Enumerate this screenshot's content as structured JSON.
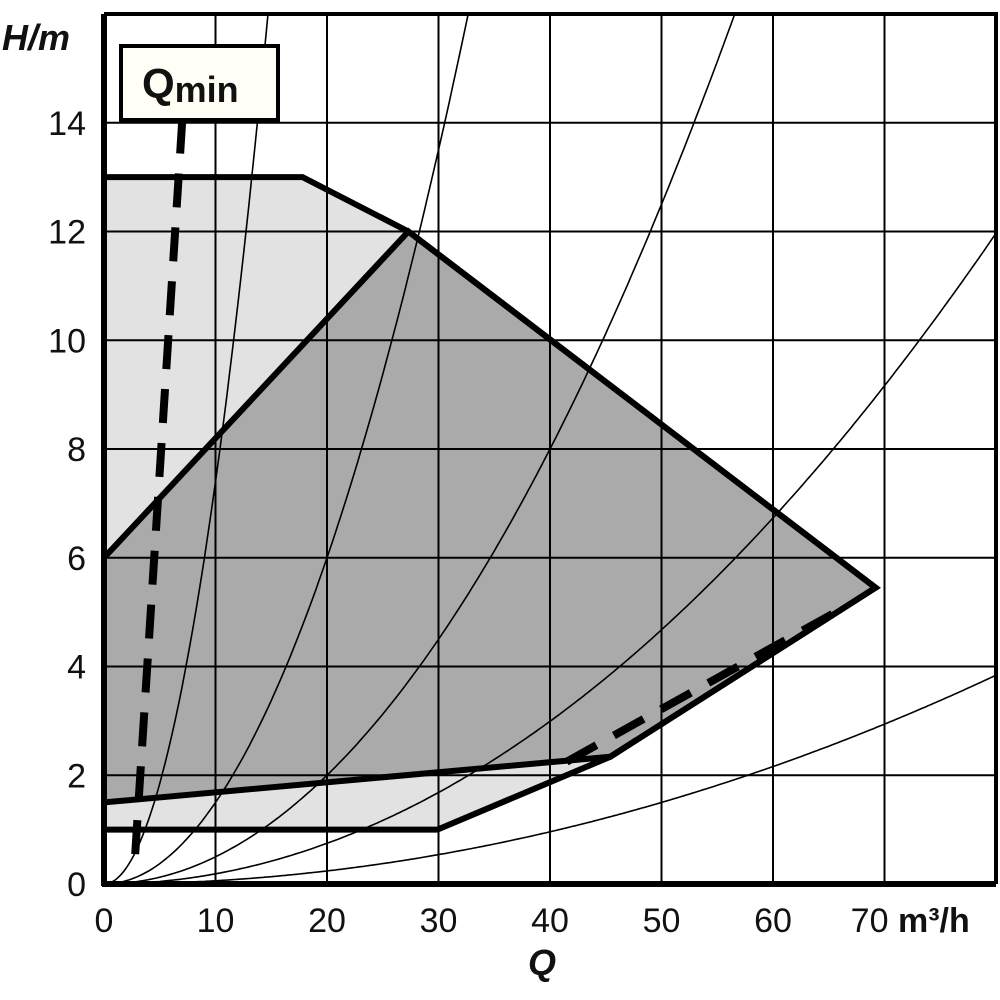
{
  "chart_data": {
    "type": "area",
    "xlabel": "Q",
    "xunit": "m³/h",
    "ylabel": "H/m",
    "xlim": [
      0,
      80
    ],
    "ylim": [
      0,
      16
    ],
    "x_ticks": [
      0,
      10,
      20,
      30,
      40,
      50,
      60,
      70
    ],
    "y_ticks": [
      0,
      2,
      4,
      6,
      8,
      10,
      12,
      14
    ],
    "grid": true,
    "colors": {
      "max_region": "#e2e2e2",
      "min_region": "#aaaaaa",
      "lines": "#000000",
      "label_box": "#fffff6"
    },
    "regions": [
      {
        "id": "max_speed_field",
        "points": [
          [
            0,
            13
          ],
          [
            17.8,
            13
          ],
          [
            27.3,
            12
          ],
          [
            69.2,
            5.45
          ],
          [
            45.4,
            2.34
          ],
          [
            29.9,
            1.0
          ],
          [
            0,
            1.0
          ]
        ]
      },
      {
        "id": "operating_field",
        "points": [
          [
            0,
            6
          ],
          [
            27.3,
            12
          ],
          [
            69.2,
            5.45
          ],
          [
            45.4,
            2.34
          ],
          [
            0,
            1.5
          ]
        ]
      }
    ],
    "dashed_lines": [
      {
        "id": "qmin_line",
        "points": [
          [
            2.8,
            0.55
          ],
          [
            7.0,
            14.0
          ]
        ]
      },
      {
        "id": "lower_dashed",
        "points": [
          [
            41.5,
            2.25
          ],
          [
            66.5,
            5.1
          ]
        ]
      }
    ],
    "system_curves_k": [
      0.074,
      0.015,
      0.005,
      0.00187,
      0.0006
    ],
    "annotations": [
      {
        "text": "Q",
        "sub": "min"
      }
    ]
  }
}
